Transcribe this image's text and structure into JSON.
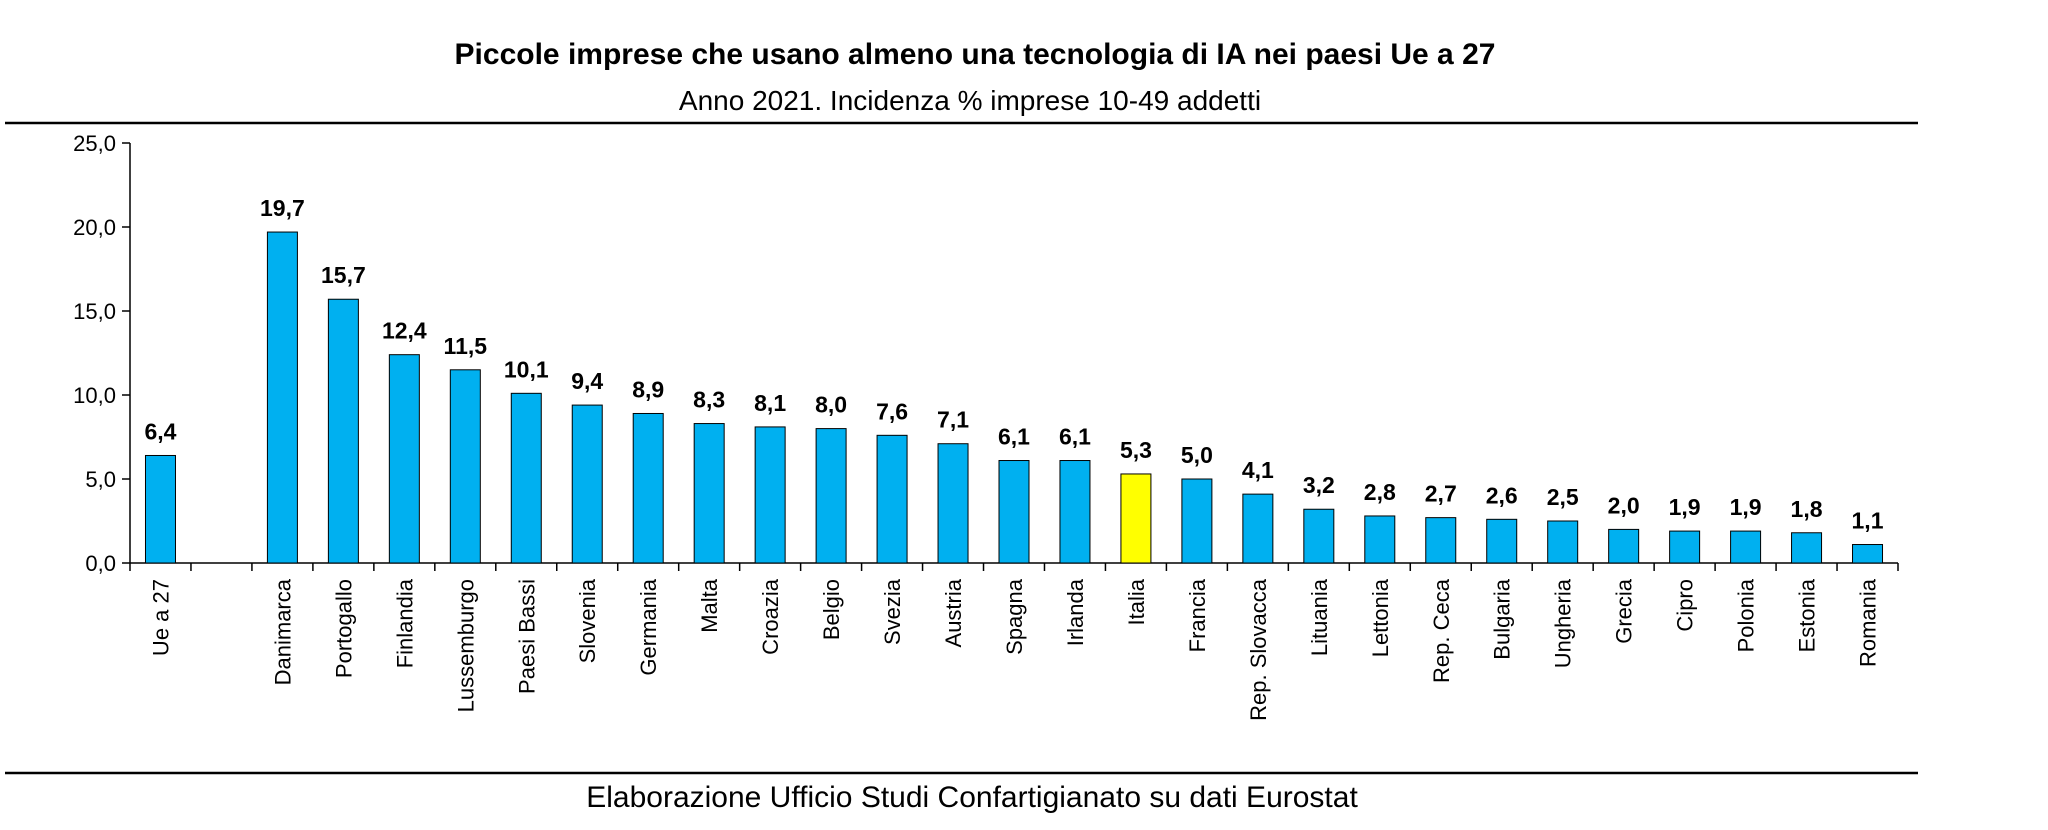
{
  "chart_data": {
    "type": "bar",
    "title": "Piccole imprese che usano almeno una tecnologia di IA nei paesi Ue a 27",
    "subtitle": "Anno 2021. Incidenza % imprese 10-49 addetti",
    "source": "Elaborazione Ufficio Studi Confartigianato su dati Eurostat",
    "ylim": [
      0,
      25
    ],
    "yticks": [
      "0,0",
      "5,0",
      "10,0",
      "15,0",
      "20,0",
      "25,0"
    ],
    "categories": [
      "Ue a 27",
      "",
      "Danimarca",
      "Portogallo",
      "Finlandia",
      "Lussemburgo",
      "Paesi Bassi",
      "Slovenia",
      "Germania",
      "Malta",
      "Croazia",
      "Belgio",
      "Svezia",
      "Austria",
      "Spagna",
      "Irlanda",
      "Italia",
      "Francia",
      "Rep. Slovacca",
      "Lituania",
      "Lettonia",
      "Rep. Ceca",
      "Bulgaria",
      "Ungheria",
      "Grecia",
      "Cipro",
      "Polonia",
      "Estonia",
      "Romania"
    ],
    "values": [
      6.4,
      null,
      19.7,
      15.7,
      12.4,
      11.5,
      10.1,
      9.4,
      8.9,
      8.3,
      8.1,
      8.0,
      7.6,
      7.1,
      6.1,
      6.1,
      5.3,
      5.0,
      4.1,
      3.2,
      2.8,
      2.7,
      2.6,
      2.5,
      2.0,
      1.9,
      1.9,
      1.8,
      1.1
    ],
    "value_labels": [
      "6,4",
      "",
      "19,7",
      "15,7",
      "12,4",
      "11,5",
      "10,1",
      "9,4",
      "8,9",
      "8,3",
      "8,1",
      "8,0",
      "7,6",
      "7,1",
      "6,1",
      "6,1",
      "5,3",
      "5,0",
      "4,1",
      "3,2",
      "2,8",
      "2,7",
      "2,6",
      "2,5",
      "2,0",
      "1,9",
      "1,9",
      "1,8",
      "1,1"
    ],
    "highlight_category": "Italia",
    "colors": {
      "bar": "#00B0F0",
      "highlight": "#FFFF00",
      "outline": "#000000"
    }
  }
}
